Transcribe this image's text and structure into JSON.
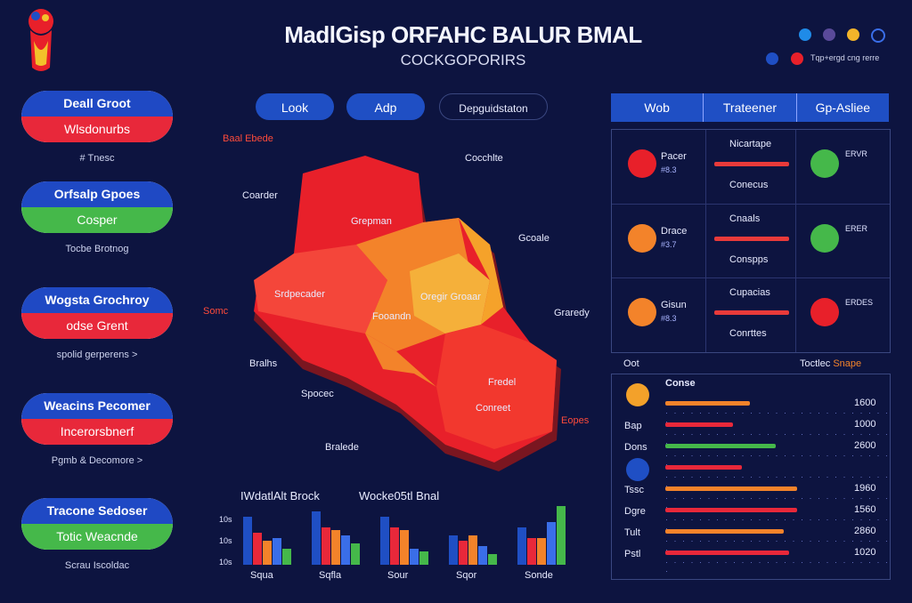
{
  "header": {
    "title": "MadlGisp ORFAHC BALUR BMAL",
    "subtitle": "COCKGOPORIRS",
    "legend_text": "Tqp+ergd cng rerre"
  },
  "top_controls": {
    "btn1": "Look",
    "btn2": "Adp",
    "btn3": "Depguidstaton"
  },
  "left_cards": [
    {
      "top": "Deall Groot",
      "bottom": "Wlsdonurbs",
      "bottom_color": "#e8283a",
      "caption": "# Tnesc"
    },
    {
      "top": "Orfsalp Gpoes",
      "bottom": "Cosper",
      "bottom_color": "#45b84a",
      "caption": "Tocbe Brotnog"
    },
    {
      "top": "Wogsta Grochroy",
      "bottom": "odse Grent",
      "bottom_color": "#e8283a",
      "caption": "spolid gerperens >"
    },
    {
      "top": "Weacins Pecomer",
      "bottom": "Incerorsbnerf",
      "bottom_color": "#e8283a",
      "caption": "Pgmb & Decomore >"
    },
    {
      "top": "Tracone Sedoser",
      "bottom": "Totic Weacnde",
      "bottom_color": "#45b84a",
      "caption": "Scrau Iscoldac"
    }
  ],
  "map": {
    "labels": [
      {
        "text": "Baal Ebede",
        "red": true
      },
      {
        "text": "Coarder",
        "red": false
      },
      {
        "text": "Cocchlte",
        "red": false
      },
      {
        "text": "Gcoale",
        "red": false
      },
      {
        "text": "Somc",
        "red": true
      },
      {
        "text": "Graredy",
        "red": false
      },
      {
        "text": "Bralhs",
        "red": false
      },
      {
        "text": "Spocec",
        "red": false
      },
      {
        "text": "Bralede",
        "red": false
      },
      {
        "text": "Fooandn",
        "red": false
      },
      {
        "text": "Eopes",
        "red": true
      },
      {
        "text": "Grepman",
        "red": false
      },
      {
        "text": "Srdpecader",
        "red": false
      },
      {
        "text": "Oregir Groaar",
        "red": false
      },
      {
        "text": "Fredel",
        "red": false
      },
      {
        "text": "Conreet",
        "red": false
      }
    ]
  },
  "table": {
    "headers": [
      "Wob",
      "Trateener",
      "Gp-Asliee"
    ],
    "rows": [
      {
        "circle": "#e8202a",
        "name": "Pacer",
        "sub": "#8.3",
        "mid_title": "Nicartape",
        "mid_bar": "#e83a3a",
        "mid_foot": "Conecus",
        "right_circle": "#45b84a",
        "right_text": "ERVR"
      },
      {
        "circle": "#f3832a",
        "name": "Drace",
        "sub": "#3.7",
        "mid_title": "Cnaals",
        "mid_bar": "#e83a3a",
        "mid_foot": "Conspps",
        "right_circle": "#45b84a",
        "right_text": "ERER"
      },
      {
        "circle": "#f3832a",
        "name": "Gisun",
        "sub": "#8.3",
        "mid_title": "Cupacias",
        "mid_bar": "#e83a3a",
        "mid_foot": "Conrttes",
        "right_circle": "#e8202a",
        "right_text": "ERDES"
      }
    ]
  },
  "bottom_right": {
    "left_label": "Oot",
    "right_label": "Toctlec",
    "right_label_accent": "Snape",
    "header": "Conse",
    "rows": [
      {
        "label": "",
        "value": "1600",
        "bar": "#f3832a",
        "pct": 0.5
      },
      {
        "label": "Bap",
        "value": "1000",
        "bar": "#e8283a",
        "pct": 0.4
      },
      {
        "label": "Dons",
        "value": "2600",
        "bar": "#45b84a",
        "pct": 0.65
      },
      {
        "label": "",
        "value": "",
        "bar": "#e8283a",
        "pct": 0.45
      },
      {
        "label": "Tssc",
        "value": "1960",
        "bar": "#f3832a",
        "pct": 0.78
      },
      {
        "label": "Dgre",
        "value": "1560",
        "bar": "#e8283a",
        "pct": 0.78
      },
      {
        "label": "Tult",
        "value": "2860",
        "bar": "#f3832a",
        "pct": 0.7
      },
      {
        "label": "Pstl",
        "value": "1020",
        "bar": "#e8283a",
        "pct": 0.73
      }
    ]
  },
  "bar_charts": {
    "title1": "IWdatlAlt Brock",
    "title2": "Wocke05tl Bnal",
    "yticks": [
      "10s",
      "10s",
      "10s"
    ],
    "groups": [
      {
        "label": "Squa",
        "values": [
          0.9,
          0.6,
          0.45,
          0.5,
          0.3
        ]
      },
      {
        "label": "Sqfla",
        "values": [
          1.0,
          0.7,
          0.65,
          0.55,
          0.4
        ]
      },
      {
        "label": "Sour",
        "values": [
          0.9,
          0.7,
          0.65,
          0.3,
          0.25
        ]
      },
      {
        "label": "Sqor",
        "values": [
          0.55,
          0.45,
          0.55,
          0.35,
          0.2
        ]
      },
      {
        "label": "Sonde",
        "values": [
          0.7,
          0.5,
          0.5,
          0.8,
          1.1
        ]
      }
    ],
    "colors": [
      "#1f4fc4",
      "#e8283a",
      "#f3832a",
      "#3a6ee8",
      "#45b84a"
    ]
  }
}
